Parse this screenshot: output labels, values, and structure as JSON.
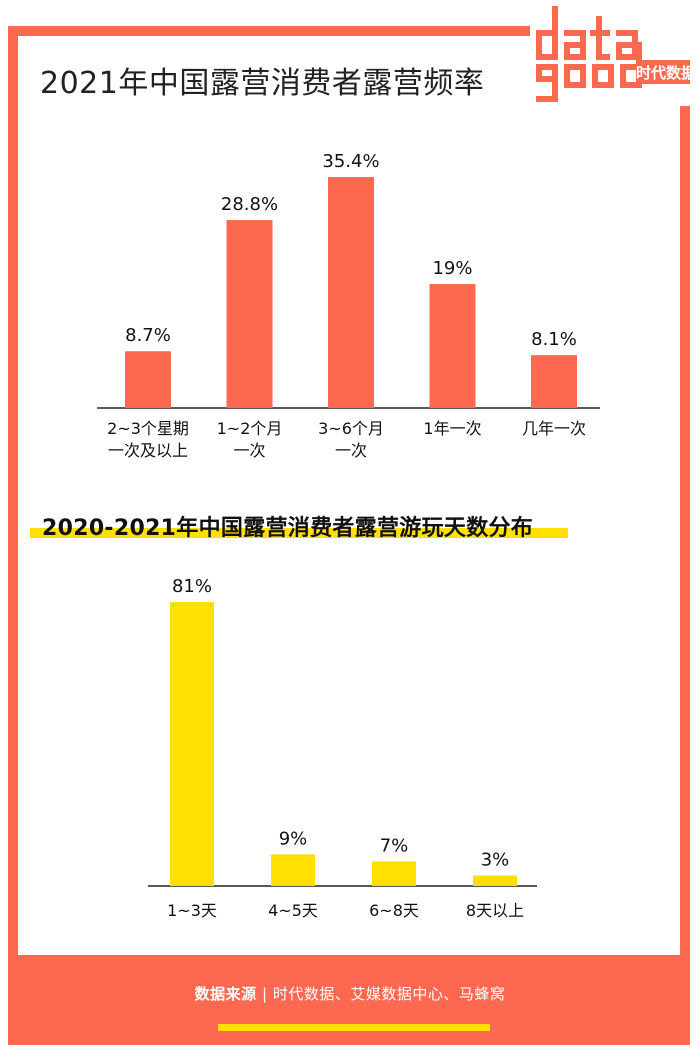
{
  "logo": {
    "mark_text": "data good",
    "brand_text": "时代数据"
  },
  "chart_data": [
    {
      "type": "bar",
      "title": "2021年中国露营消费者露营频率",
      "categories": [
        "2~3个星期\n一次及以上",
        "1~2个月\n一次",
        "3~6个月\n一次",
        "1年一次",
        "几年一次"
      ],
      "values": [
        8.7,
        28.8,
        35.4,
        19,
        8.1
      ],
      "value_labels": [
        "8.7%",
        "28.8%",
        "35.4%",
        "19%",
        "8.1%"
      ],
      "unit": "%",
      "ylim": [
        0,
        40
      ],
      "grid": false,
      "bar_color": "#fd6950"
    },
    {
      "type": "bar",
      "title": "2020-2021年中国露营消费者露营游玩天数分布",
      "categories": [
        "1~3天",
        "4~5天",
        "6~8天",
        "8天以上"
      ],
      "values": [
        81,
        9,
        7,
        3
      ],
      "value_labels": [
        "81%",
        "9%",
        "7%",
        "3%"
      ],
      "unit": "%",
      "ylim": [
        0,
        81
      ],
      "grid": false,
      "bar_color": "#ffe000"
    }
  ],
  "footer": {
    "source_label": "数据来源",
    "separator": "|",
    "sources": "时代数据、艾媒数据中心、马蜂窝"
  },
  "colors": {
    "frame": "#fd6950",
    "highlight": "#ffe000"
  }
}
